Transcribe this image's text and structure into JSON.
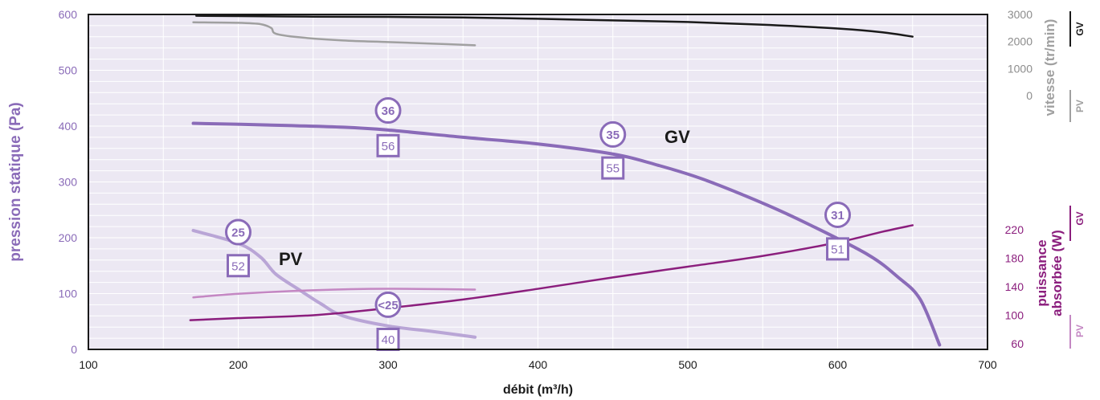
{
  "chart_data": {
    "type": "line",
    "xlabel": "débit (m³/h)",
    "ylabel": "pression statique (Pa)",
    "xlim": [
      100,
      700
    ],
    "ylim": [
      0,
      600
    ],
    "x_ticks": [
      100,
      200,
      300,
      400,
      500,
      600,
      700
    ],
    "y_ticks": [
      0,
      100,
      200,
      300,
      400,
      500,
      600
    ],
    "grid": true,
    "speed_axis": {
      "label": "vitesse (tr/min)",
      "ticks": [
        0,
        1000,
        2000,
        3000
      ],
      "range": [
        0,
        3000
      ],
      "gv_tag": "GV",
      "pv_tag": "PV"
    },
    "power_axis": {
      "label_line1": "puissance",
      "label_line2": "absorbée (W)",
      "ticks": [
        60,
        100,
        140,
        180,
        220
      ],
      "range": [
        60,
        240
      ],
      "gv_tag": "GV",
      "pv_tag": "PV"
    },
    "curve_labels": {
      "gv": "GV",
      "pv": "PV"
    },
    "colors": {
      "pressure_gv": "#8a6bb8",
      "pressure_pv": "#b9a5d6",
      "speed_gv": "#1a1a1a",
      "speed_pv": "#a0a0a0",
      "power_gv": "#8b1e7d",
      "power_pv": "#c487c3",
      "plot_bg": "#ece8f3",
      "grid": "#ffffff"
    },
    "series": [
      {
        "key": "pressure_gv",
        "axis": "pressure",
        "x": [
          170,
          220,
          270,
          300,
          350,
          400,
          450,
          480,
          510,
          550,
          580,
          620,
          640,
          655,
          668
        ],
        "y": [
          405,
          402,
          398,
          393,
          380,
          368,
          350,
          330,
          305,
          262,
          225,
          170,
          130,
          90,
          8
        ]
      },
      {
        "key": "pressure_pv",
        "axis": "pressure",
        "x": [
          170,
          200,
          215,
          225,
          240,
          255,
          270,
          300,
          330,
          358
        ],
        "y": [
          213,
          190,
          165,
          135,
          108,
          82,
          60,
          42,
          32,
          22
        ]
      },
      {
        "key": "speed_gv",
        "axis": "speed",
        "x": [
          172,
          200,
          250,
          300,
          350,
          400,
          450,
          500,
          550,
          600,
          630,
          650
        ],
        "y": [
          2950,
          2940,
          2920,
          2910,
          2890,
          2840,
          2780,
          2720,
          2620,
          2480,
          2340,
          2180
        ]
      },
      {
        "key": "speed_pv",
        "axis": "speed",
        "x": [
          170,
          200,
          215,
          222,
          225,
          240,
          270,
          300,
          330,
          358
        ],
        "y": [
          2710,
          2690,
          2640,
          2500,
          2290,
          2160,
          2040,
          1980,
          1920,
          1860
        ]
      },
      {
        "key": "power_gv",
        "axis": "power",
        "x": [
          168,
          200,
          250,
          300,
          350,
          400,
          450,
          500,
          550,
          600,
          630,
          650
        ],
        "y": [
          93,
          96,
          100,
          110,
          122,
          137,
          153,
          168,
          183,
          202,
          217,
          226
        ]
      },
      {
        "key": "power_pv",
        "axis": "power",
        "x": [
          170,
          200,
          250,
          300,
          358
        ],
        "y": [
          125,
          130,
          135,
          137,
          136
        ]
      }
    ],
    "efficiency_markers": [
      {
        "x": 300,
        "y": 428,
        "label": "36"
      },
      {
        "x": 450,
        "y": 385,
        "label": "35"
      },
      {
        "x": 600,
        "y": 241,
        "label": "31"
      },
      {
        "x": 200,
        "y": 210,
        "label": "25"
      },
      {
        "x": 300,
        "y": 80,
        "label": "<25"
      }
    ],
    "noise_markers": [
      {
        "x": 300,
        "y": 365,
        "label": "56"
      },
      {
        "x": 450,
        "y": 325,
        "label": "55"
      },
      {
        "x": 600,
        "y": 180,
        "label": "51"
      },
      {
        "x": 200,
        "y": 150,
        "label": "52"
      },
      {
        "x": 300,
        "y": 18,
        "label": "40"
      }
    ]
  }
}
